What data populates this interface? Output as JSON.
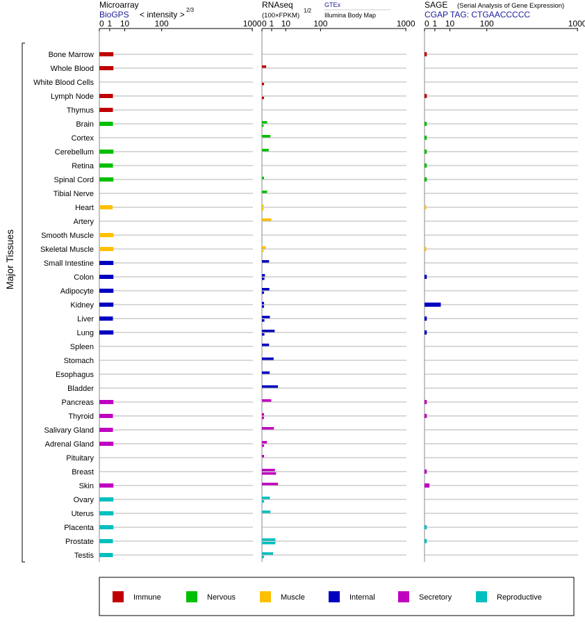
{
  "side_label": "Major Tissues",
  "panels": {
    "microarray": {
      "title": "Microarray",
      "source": "BioGPS",
      "unit": "< intensity >",
      "unit_exp": "2/3"
    },
    "rnaseq": {
      "title": "RNAseq",
      "unit": "(100×FPKM)",
      "unit_exp": "1/2",
      "source_1": "GTEx",
      "source_2": "Illumina Body Map"
    },
    "sage": {
      "title": "SAGE",
      "subtitle": "(Serial Analysis of Gene Expression)",
      "tag": "CGAP TAG: CTGAACCCCC"
    }
  },
  "axis_ticks": [
    {
      "label": "0",
      "value": 0
    },
    {
      "label": "1",
      "value": 1
    },
    {
      "label": "10",
      "value": 10
    },
    {
      "label": "100",
      "value": 100
    },
    {
      "label": "1000",
      "value": 1000
    }
  ],
  "colors": {
    "Immune": "#c00000",
    "Nervous": "#00bf00",
    "Muscle": "#ffc000",
    "Internal": "#0000c0",
    "Secretory": "#c000c0",
    "Reproductive": "#00bfbf"
  },
  "legend": [
    "Immune",
    "Nervous",
    "Muscle",
    "Internal",
    "Secretory",
    "Reproductive"
  ],
  "chart_data": {
    "type": "bar",
    "scale": "power (tick values 0, 1, 10, 100, 1000)",
    "xlim": [
      0,
      1000
    ],
    "grid": true,
    "legend_position": "bottom",
    "tissues": [
      {
        "name": "Bone Marrow",
        "system": "Immune",
        "microarray": 2.2,
        "gtex": null,
        "ibm": null,
        "sage": 0.02
      },
      {
        "name": "Whole Blood",
        "system": "Immune",
        "microarray": 2.2,
        "gtex": 0.12,
        "ibm": null,
        "sage": null
      },
      {
        "name": "White Blood Cells",
        "system": "Immune",
        "microarray": null,
        "gtex": null,
        "ibm": 0.02,
        "sage": null
      },
      {
        "name": "Lymph Node",
        "system": "Immune",
        "microarray": 2.0,
        "gtex": null,
        "ibm": 0.02,
        "sage": 0.02
      },
      {
        "name": "Thymus",
        "system": "Immune",
        "microarray": 2.0,
        "gtex": null,
        "ibm": null,
        "sage": null
      },
      {
        "name": "Brain",
        "system": "Nervous",
        "microarray": 2.0,
        "gtex": 0.2,
        "ibm": 0.01,
        "sage": 0.02
      },
      {
        "name": "Cortex",
        "system": "Nervous",
        "microarray": null,
        "gtex": 0.7,
        "ibm": null,
        "sage": 0.02
      },
      {
        "name": "Cerebellum",
        "system": "Nervous",
        "microarray": 2.2,
        "gtex": 0.4,
        "ibm": null,
        "sage": 0.02
      },
      {
        "name": "Retina",
        "system": "Nervous",
        "microarray": 2.0,
        "gtex": null,
        "ibm": null,
        "sage": 0.02
      },
      {
        "name": "Spinal Cord",
        "system": "Nervous",
        "microarray": 2.2,
        "gtex": 0.02,
        "ibm": null,
        "sage": 0.02
      },
      {
        "name": "Tibial Nerve",
        "system": "Nervous",
        "microarray": null,
        "gtex": 0.2,
        "ibm": null,
        "sage": null
      },
      {
        "name": "Heart",
        "system": "Muscle",
        "microarray": 1.9,
        "gtex": 0.01,
        "ibm": 0.01,
        "sage": 0.01
      },
      {
        "name": "Artery",
        "system": "Muscle",
        "microarray": null,
        "gtex": 0.9,
        "ibm": null,
        "sage": null
      },
      {
        "name": "Smooth Muscle",
        "system": "Muscle",
        "microarray": 2.2,
        "gtex": null,
        "ibm": null,
        "sage": null
      },
      {
        "name": "Skeletal Muscle",
        "system": "Muscle",
        "microarray": 2.2,
        "gtex": 0.09,
        "ibm": 0.01,
        "sage": 0.01
      },
      {
        "name": "Small Intestine",
        "system": "Internal",
        "microarray": 2.2,
        "gtex": 0.45,
        "ibm": null,
        "sage": null
      },
      {
        "name": "Colon",
        "system": "Internal",
        "microarray": 2.2,
        "gtex": 0.05,
        "ibm": 0.03,
        "sage": 0.02
      },
      {
        "name": "Adipocyte",
        "system": "Internal",
        "microarray": 2.2,
        "gtex": 0.5,
        "ibm": 0.02,
        "sage": null
      },
      {
        "name": "Kidney",
        "system": "Internal",
        "microarray": 2.2,
        "gtex": 0.02,
        "ibm": 0.02,
        "sage": 3.2
      },
      {
        "name": "Liver",
        "system": "Internal",
        "microarray": 2.0,
        "gtex": 0.6,
        "ibm": 0.03,
        "sage": 0.02
      },
      {
        "name": "Lung",
        "system": "Internal",
        "microarray": 2.2,
        "gtex": 2.0,
        "ibm": 0.03,
        "sage": 0.02
      },
      {
        "name": "Spleen",
        "system": "Internal",
        "microarray": null,
        "gtex": 0.45,
        "ibm": null,
        "sage": null
      },
      {
        "name": "Stomach",
        "system": "Internal",
        "microarray": null,
        "gtex": 1.6,
        "ibm": null,
        "sage": null
      },
      {
        "name": "Esophagus",
        "system": "Internal",
        "microarray": null,
        "gtex": 0.55,
        "ibm": null,
        "sage": null
      },
      {
        "name": "Bladder",
        "system": "Internal",
        "microarray": null,
        "gtex": 3.6,
        "ibm": null,
        "sage": null
      },
      {
        "name": "Pancreas",
        "system": "Secretory",
        "microarray": 2.2,
        "gtex": 0.9,
        "ibm": null,
        "sage": 0.02
      },
      {
        "name": "Thyroid",
        "system": "Secretory",
        "microarray": 2.0,
        "gtex": 0.02,
        "ibm": 0.02,
        "sage": 0.02
      },
      {
        "name": "Salivary Gland",
        "system": "Secretory",
        "microarray": 2.0,
        "gtex": 1.7,
        "ibm": null,
        "sage": null
      },
      {
        "name": "Adrenal Gland",
        "system": "Secretory",
        "microarray": 2.2,
        "gtex": 0.18,
        "ibm": 0.02,
        "sage": null
      },
      {
        "name": "Pituitary",
        "system": "Secretory",
        "microarray": null,
        "gtex": 0.02,
        "ibm": null,
        "sage": null
      },
      {
        "name": "Breast",
        "system": "Secretory",
        "microarray": null,
        "gtex": 2.1,
        "ibm": 2.6,
        "sage": 0.02
      },
      {
        "name": "Skin",
        "system": "Secretory",
        "microarray": 2.2,
        "gtex": 3.6,
        "ibm": null,
        "sage": 0.15
      },
      {
        "name": "Ovary",
        "system": "Reproductive",
        "microarray": 2.2,
        "gtex": 0.6,
        "ibm": 0.02,
        "sage": null
      },
      {
        "name": "Uterus",
        "system": "Reproductive",
        "microarray": 2.2,
        "gtex": 0.7,
        "ibm": null,
        "sage": null
      },
      {
        "name": "Placenta",
        "system": "Reproductive",
        "microarray": 2.2,
        "gtex": null,
        "ibm": null,
        "sage": 0.02
      },
      {
        "name": "Prostate",
        "system": "Reproductive",
        "microarray": 2.0,
        "gtex": 2.3,
        "ibm": 2.3,
        "sage": 0.02
      },
      {
        "name": "Testis",
        "system": "Reproductive",
        "microarray": 2.0,
        "gtex": 1.4,
        "ibm": 0.02,
        "sage": null
      }
    ]
  }
}
